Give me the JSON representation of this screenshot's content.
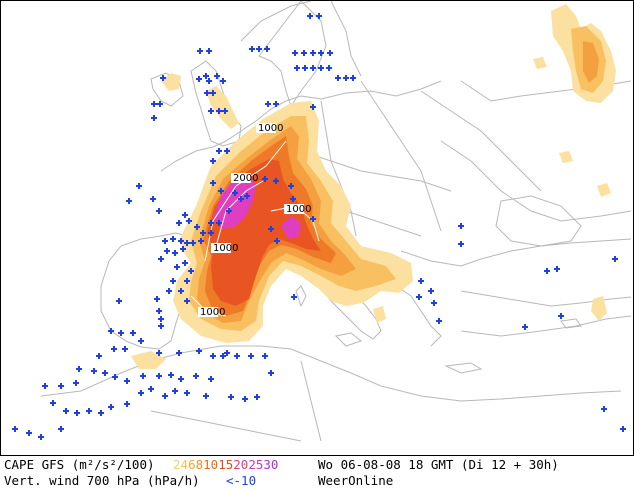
{
  "legend": {
    "cape_label": "CAPE GFS (m²/s²/100)",
    "cape_scale": [
      {
        "text": "2",
        "color": "#f7d070"
      },
      {
        "text": "4",
        "color": "#f5c060"
      },
      {
        "text": "6",
        "color": "#f3a840"
      },
      {
        "text": "8",
        "color": "#f09030"
      },
      {
        "text": "10",
        "color": "#ec6c1c"
      },
      {
        "text": "15",
        "color": "#e24a18"
      },
      {
        "text": "20",
        "color": "#e0407a"
      },
      {
        "text": "25",
        "color": "#c83cb8"
      },
      {
        "text": "30",
        "color": "#b030d0"
      }
    ],
    "timestamp": "Wo 06-08-08 18 GMT (Di 12 + 30h)",
    "wind_label": "Vert. wind 700 hPa (hPa/h)",
    "wind_threshold": "<-10",
    "wind_color": "#2040e0",
    "brand": "WeerOnline"
  },
  "map": {
    "contour_labels": [
      "1000",
      "2000",
      "1000",
      "1000",
      "1000"
    ],
    "colors": {
      "cape_low": "#fbe0a0",
      "cape_mid": "#f8c060",
      "cape_mid2": "#f5a040",
      "cape_high": "#ee7a28",
      "cape_higher": "#e85522",
      "cape_peak": "#e03ec0",
      "border": "#b8b8b8",
      "marker": "#2040e0"
    }
  }
}
